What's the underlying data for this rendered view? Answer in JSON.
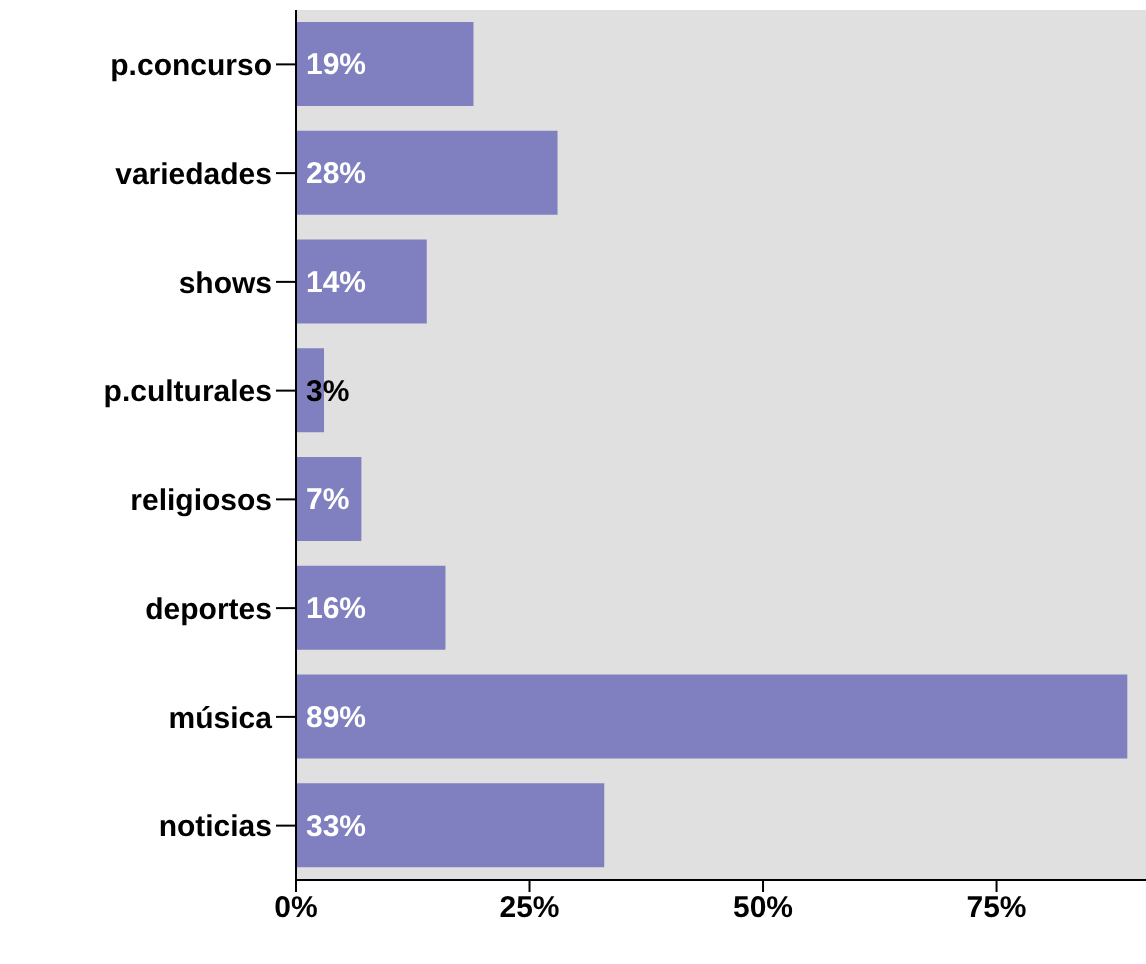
{
  "chart_data": {
    "type": "bar",
    "orientation": "horizontal",
    "categories": [
      "p.concurso",
      "variedades",
      "shows",
      "p.culturales",
      "religiosos",
      "deportes",
      "música",
      "noticias"
    ],
    "values": [
      19,
      28,
      14,
      3,
      7,
      16,
      89,
      33
    ],
    "value_labels": [
      "19%",
      "28%",
      "14%",
      "3%",
      "7%",
      "16%",
      "89%",
      "33%"
    ],
    "color": "#8080c0",
    "xlim": [
      0,
      91
    ],
    "xticks": [
      {
        "value": 0,
        "label": "0%"
      },
      {
        "value": 25,
        "label": "25%"
      },
      {
        "value": 50,
        "label": "50%"
      },
      {
        "value": 75,
        "label": "75%"
      }
    ],
    "grid": false
  }
}
